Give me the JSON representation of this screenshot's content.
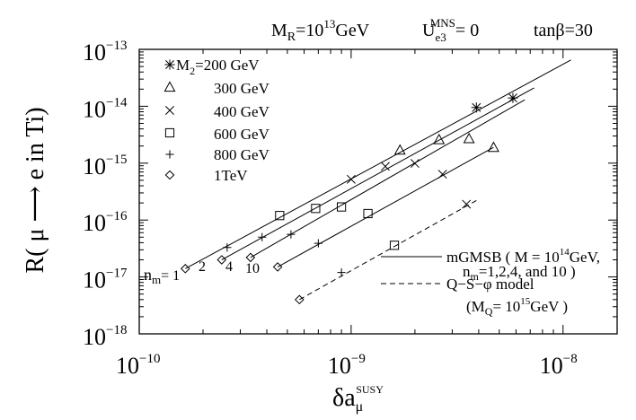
{
  "header": {
    "mr_label": "M",
    "mr_sub": "R",
    "mr_value": "=10",
    "mr_exp": "13",
    "mr_unit": "GeV",
    "u_label": "U",
    "u_sub": "e3",
    "u_sup": "MNS",
    "u_value": "= 0",
    "tanb_label": "tanβ=30"
  },
  "chart_data": {
    "type": "scatter",
    "x_scale": "log",
    "y_scale": "log",
    "xlim": [
      1e-10,
      1.8e-08
    ],
    "ylim": [
      1e-18,
      1e-13
    ],
    "xlabel": "δa",
    "xlabel_sub": "μ",
    "xlabel_sup": "SUSY",
    "ylabel": "R( μ ⟶ e in Ti)",
    "x_ticks": [
      {
        "value": 1e-10,
        "base": "10",
        "exp": "−10"
      },
      {
        "value": 1e-09,
        "base": "10",
        "exp": "−9"
      },
      {
        "value": 1e-08,
        "base": "10",
        "exp": "−8"
      }
    ],
    "y_ticks": [
      {
        "value": 1e-13,
        "base": "10",
        "exp": "−13"
      },
      {
        "value": 1e-14,
        "base": "10",
        "exp": "−14"
      },
      {
        "value": 1e-15,
        "base": "10",
        "exp": "−15"
      },
      {
        "value": 1e-16,
        "base": "10",
        "exp": "−16"
      },
      {
        "value": 1e-17,
        "base": "10",
        "exp": "−17"
      },
      {
        "value": 1e-18,
        "base": "10",
        "exp": "−18"
      }
    ],
    "series": [
      {
        "name": "M₂=200 GeV",
        "marker": "asterisk",
        "points": [
          [
            3.9e-09,
            9.5e-15
          ],
          [
            5.8e-09,
            1.4e-14
          ]
        ]
      },
      {
        "name": "300 GeV",
        "marker": "triangle",
        "points": [
          [
            1.7e-09,
            1.7e-15
          ],
          [
            2.6e-09,
            2.6e-15
          ],
          [
            3.6e-09,
            2.7e-15
          ],
          [
            4.7e-09,
            1.9e-15
          ]
        ]
      },
      {
        "name": "400 GeV",
        "marker": "x",
        "points": [
          [
            1e-09,
            5.2e-16
          ],
          [
            1.45e-09,
            8.8e-16
          ],
          [
            2e-09,
            9.9e-16
          ],
          [
            2.7e-09,
            6.4e-16
          ],
          [
            3.5e-09,
            1.9e-16
          ]
        ]
      },
      {
        "name": "600 GeV",
        "marker": "square",
        "points": [
          [
            4.6e-10,
            1.2e-16
          ],
          [
            6.8e-10,
            1.6e-16
          ],
          [
            9e-10,
            1.7e-16
          ],
          [
            1.2e-09,
            1.3e-16
          ],
          [
            1.6e-09,
            3.6e-17
          ]
        ]
      },
      {
        "name": "800 GeV",
        "marker": "plus",
        "points": [
          [
            2.6e-10,
            3.3e-17
          ],
          [
            3.8e-10,
            5e-17
          ],
          [
            5.2e-10,
            5.6e-17
          ],
          [
            7e-10,
            3.9e-17
          ],
          [
            9e-10,
            1.2e-17
          ]
        ]
      },
      {
        "name": "1TeV",
        "marker": "diamond",
        "points": [
          [
            1.65e-10,
            1.4e-17
          ],
          [
            2.45e-10,
            2e-17
          ],
          [
            3.35e-10,
            2.2e-17
          ],
          [
            4.5e-10,
            1.5e-17
          ],
          [
            5.7e-10,
            4e-18
          ]
        ]
      }
    ],
    "lines": [
      {
        "model": "mGMSB",
        "n_m": "1",
        "style": "solid",
        "points": [
          [
            1.65e-10,
            1.4e-17
          ],
          [
            1.09e-08,
            6.5e-14
          ]
        ]
      },
      {
        "model": "mGMSB",
        "n_m": "2",
        "style": "solid",
        "points": [
          [
            2.45e-10,
            2e-17
          ],
          [
            7.3e-09,
            2.1e-14
          ]
        ]
      },
      {
        "model": "mGMSB",
        "n_m": "4",
        "style": "solid",
        "points": [
          [
            3.35e-10,
            2.2e-17
          ],
          [
            6.6e-09,
            1.3e-14
          ]
        ]
      },
      {
        "model": "mGMSB",
        "n_m": "10",
        "style": "solid",
        "points": [
          [
            4.5e-10,
            1.5e-17
          ],
          [
            4.7e-09,
            1.9e-15
          ]
        ]
      },
      {
        "model": "Q-S-φ",
        "style": "dashed",
        "points": [
          [
            5.7e-10,
            4e-18
          ],
          [
            3.9e-09,
            2.2e-16
          ]
        ]
      }
    ],
    "line_labels": [
      {
        "text_main": "n",
        "text_sub": "m",
        "text_tail": "= 1"
      },
      {
        "text_main": "2"
      },
      {
        "text_main": "4"
      },
      {
        "text_main": "10"
      }
    ],
    "legend": {
      "placement": "top-left",
      "marker_entries": [
        "M₂=200 GeV",
        "300 GeV",
        "400 GeV",
        "600 GeV",
        "800 GeV",
        "1TeV"
      ],
      "marker_first_main": "M",
      "marker_first_sub": "2",
      "marker_first_tail": "=200 GeV",
      "line_entries_placement": "bottom-right",
      "mgmsb_line1_a": "mGMSB ( M = 10",
      "mgmsb_line1_exp": "14",
      "mgmsb_line1_b": "GeV,",
      "mgmsb_line2_a": "n",
      "mgmsb_line2_sub": "m",
      "mgmsb_line2_b": "=1,2,4, and 10 )",
      "qsphi_line1": "Q−S−φ  model",
      "qsphi_line2_a": "(M",
      "qsphi_line2_sub": "Q",
      "qsphi_line2_b": "= 10",
      "qsphi_line2_exp": "15",
      "qsphi_line2_c": "GeV )"
    },
    "grid": false
  }
}
